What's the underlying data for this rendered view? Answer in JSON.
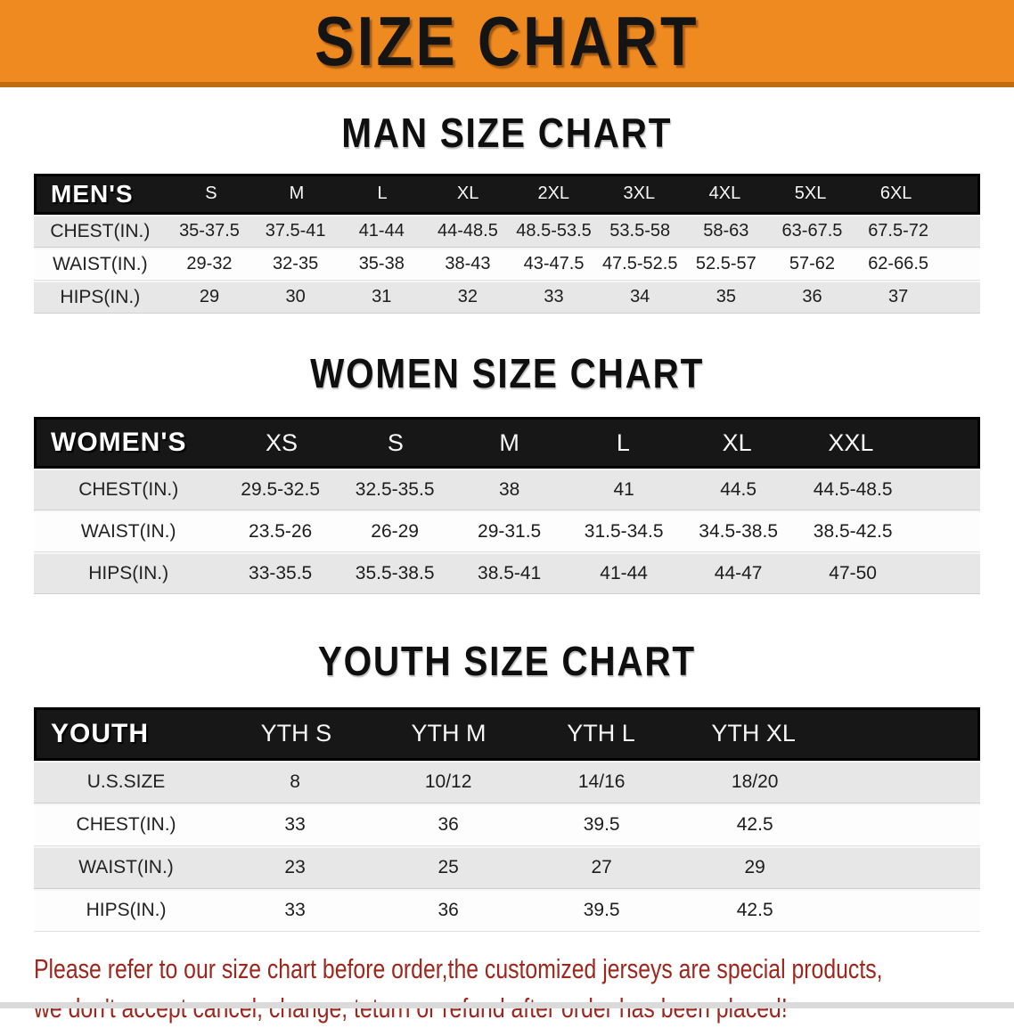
{
  "banner": {
    "title": "SIZE CHART",
    "bg_color": "#ee8a20",
    "edge_color": "#bf6c10",
    "text_color": "#141414"
  },
  "sections": {
    "men": {
      "title": "MAN SIZE CHART",
      "header": [
        "MEN'S",
        "S",
        "M",
        "L",
        "XL",
        "2XL",
        "3XL",
        "4XL",
        "5XL",
        "6XL"
      ],
      "rows": [
        [
          "CHEST(IN.)",
          "35-37.5",
          "37.5-41",
          "41-44",
          "44-48.5",
          "48.5-53.5",
          "53.5-58",
          "58-63",
          "63-67.5",
          "67.5-72"
        ],
        [
          "WAIST(IN.)",
          "29-32",
          "32-35",
          "35-38",
          "38-43",
          "43-47.5",
          "47.5-52.5",
          "52.5-57",
          "57-62",
          "62-66.5"
        ],
        [
          "HIPS(IN.)",
          "29",
          "30",
          "31",
          "32",
          "33",
          "34",
          "35",
          "36",
          "37"
        ]
      ]
    },
    "women": {
      "title": "WOMEN SIZE CHART",
      "header": [
        "WOMEN'S",
        "XS",
        "S",
        "M",
        "L",
        "XL",
        "XXL"
      ],
      "rows": [
        [
          "CHEST(IN.)",
          "29.5-32.5",
          "32.5-35.5",
          "38",
          "41",
          "44.5",
          "44.5-48.5"
        ],
        [
          "WAIST(IN.)",
          "23.5-26",
          "26-29",
          "29-31.5",
          "31.5-34.5",
          "34.5-38.5",
          "38.5-42.5"
        ],
        [
          "HIPS(IN.)",
          "33-35.5",
          "35.5-38.5",
          "38.5-41",
          "41-44",
          "44-47",
          "47-50"
        ]
      ]
    },
    "youth": {
      "title": "YOUTH SIZE CHART",
      "header": [
        "YOUTH",
        "YTH S",
        "YTH M",
        "YTH L",
        "YTH XL"
      ],
      "rows": [
        [
          "U.S.SIZE",
          "8",
          "10/12",
          "14/16",
          "18/20"
        ],
        [
          "CHEST(IN.)",
          "33",
          "36",
          "39.5",
          "42.5"
        ],
        [
          "WAIST(IN.)",
          "23",
          "25",
          "27",
          "29"
        ],
        [
          "HIPS(IN.)",
          "33",
          "36",
          "39.5",
          "42.5"
        ]
      ]
    }
  },
  "footer": {
    "line1": "Please refer to our size chart before order,the customized jerseys are special products,",
    "line2": "we don't accept cancel, change, teturn or refund after order has been placed!",
    "text_color": "#9e261d"
  },
  "header_bar_color": "#171717",
  "row_shade_color": "#e7e7e7"
}
